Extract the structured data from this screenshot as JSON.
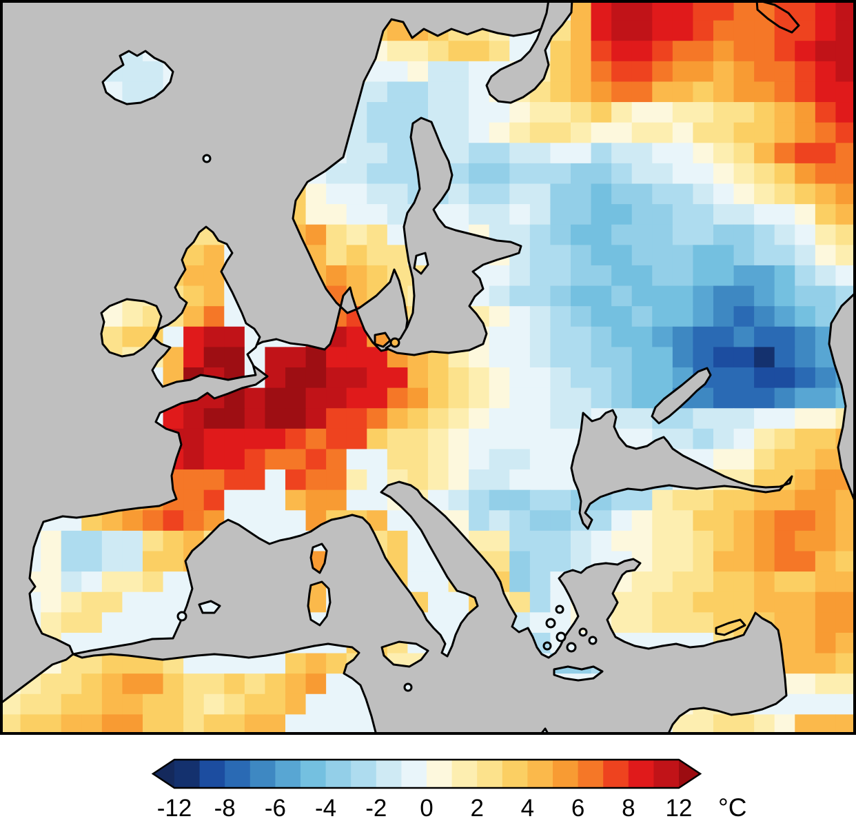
{
  "map": {
    "kind": "gridded-temperature-anomaly-map-of-europe",
    "sea_color": "#bfbfbf",
    "coast_color": "#000000",
    "frame_color": "#000000",
    "grid": {
      "cols": 42,
      "rows": 36,
      "code_values_degC": {
        "a": -11,
        "b": -9,
        "c": -7.5,
        "d": -6.5,
        "e": -5.5,
        "f": -4.5,
        "g": -3.5,
        "h": -2.5,
        "i": -1.5,
        "j": -0.5,
        "k": 0.5,
        "l": 1.5,
        "m": 2.5,
        "n": 3.5,
        "o": 4.5,
        "p": 5.5,
        "q": 6.5,
        "r": 7.5,
        "s": 9,
        "t": 11,
        "u": 13
      },
      "palette": {
        "a": "#14316e",
        "b": "#1c4da0",
        "c": "#2a6ab4",
        "d": "#3e88c2",
        "e": "#58a6d3",
        "f": "#74c0e0",
        "g": "#93cfe8",
        "h": "#aedcef",
        "i": "#cfeaf4",
        "j": "#e9f5fa",
        "k": "#fdf8dd",
        "l": "#fdeeb0",
        "m": "#fce28c",
        "n": "#fbcf63",
        "o": "#fbb94b",
        "p": "#f89b33",
        "q": "#f57727",
        "r": "#ee431f",
        "s": "#e01a1b",
        "t": "#c11318",
        "u": "#9e0e13"
      },
      "rows_data": [
        "jjjjjjjjjjjjjjjjjjnoonmmmljjosttssrrqqrrst",
        "jjjjjjjjjjjjjjjjjlnoonmmljjmosttssrqqqrrst",
        "jjjjjiijjjjjjjjjlkkllmnnmjjnorssrqqpqqrstt",
        "jjjjjiiijjjjjjjjkkjjkiijjklnoqrrqppopqqrst",
        "jjjjjjiijjjjjjkjiiihhiijklmnopqqoonoppqrss",
        "jjjjjjijjjjjjjlkiihhhiijjkllmnlkkllmmnoprs",
        "jjjjjjjjjjjjjjkliihhhiijklmmlkkllkmmnnopqr",
        "jjjjjjjjjjjjjjkkjiihhiihhiijjhiijjklmoqrrq",
        "jjjjjjjjjjjjjlmjiihhhihgghhhgghiijjklmnpqq",
        "jjjjjjjjjjjjjmnkjjiihhihhiiggfgghhijklmnop",
        "jjjjjjjjjjjjjonkkjjiijjiijiggffgghhiijjkno",
        "jjjjjjjjlmmjjjopmlmjjjjkiihgffggghhgghijlm",
        "jjjjjjjjmnojjjpomnmmjkjjkihhgffgggffghhikl",
        "jjjjjjjjnoojjjjoponmmkljjihhggffggffeefhij",
        "jjjjjkllmnojjjjoqonmlmkjihhgffgfffeddefggh",
        "jjjjjklmmoqjjjjrqrnomnmlkjihgffgffedcdefgh",
        "jjjjjmnnjsttjjjstsponmlkjjihhgffedccdccdef",
        "jjjjjmllosuujttusssponlkjjihhggffdcbbacdef",
        "jjjjjjjjoutujtuuttssonmlkjjihhgffecccbbcde",
        "jjjjjjjjsttutuuttssqpnmlkjjiihgffddcccdeef",
        "jjjjjjjjstuutuutrrqonmlkjjjiijiihhiiijjkkl",
        "jjjjjjjjttssssrqrrnmmlkjjjjjjijjiihijlmnno",
        "jjjjjjjsstssrqqrqjjmmlkjiijjjjjjjjjkkmnnoo",
        "jjjjjjjrqqqrrjrqqljlmlkiijjjjgghhjkllnnopp",
        "jjjkllopqqrjjjoppjjkljihgghhgghhlmmnnooppo",
        "jjjjnopqrqpjjjjpnnojjkkhihgghhjkllnnopqqpo",
        "jjkhhiimnomjjjjjjmmnjjkllhhhijkkllmnopqppo",
        "jjkhhiinnojjjjjpjmmnjjlmmghhijjkllmoopqqon",
        "jkkijllmjjjjjjjojmnnjjmnnghjjkkllmmnnonnoo",
        "jjklmmjjjjjjjjjojmjnnjjnlmhjkkllmmnnnooopp",
        "jjlmmjjjjjjjjjjjjjmnjjjohijjkkllmmmnnnoopp",
        "klljjjjjjjjjjjjjjnnmjjjjjhhjjjjjjjjmnnoopo",
        "lkkmmnnnmjjjjjnonmnlljjjjjjgghjjjjjjjnooon",
        "klmmnoppnmmnmnopjjjjjjjjjjjjjjjjjjjjjjkkll",
        "lmmnnoonnmlmnnojjjjjjjjjjjjjjjjjkklljjjjjj",
        "mnnooppnnmnnoojjjjjjjjjjjjjjjjjjjllmmlkooo"
      ]
    }
  },
  "colorbar": {
    "unit": "°C",
    "tick_labels": [
      "-12",
      "-8",
      "-6",
      "-4",
      "-2",
      "0",
      "2",
      "4",
      "6",
      "8",
      "12"
    ],
    "tick_boundary_index": [
      0,
      2,
      4,
      6,
      8,
      10,
      12,
      14,
      16,
      18,
      20
    ],
    "segment_boundaries_degC": [
      -12,
      -10,
      -8,
      -7,
      -6,
      -5,
      -4,
      -3,
      -2,
      -1,
      0,
      1,
      2,
      3,
      4,
      5,
      6,
      7,
      8,
      10,
      12
    ],
    "segments": [
      "#14316e",
      "#1c4da0",
      "#2a6ab4",
      "#3e88c2",
      "#58a6d3",
      "#74c0e0",
      "#93cfe8",
      "#aedcef",
      "#cfeaf4",
      "#e9f5fa",
      "#fdf8dd",
      "#fdeeb0",
      "#fce28c",
      "#fbcf63",
      "#fbb94b",
      "#f89b33",
      "#f57727",
      "#ee431f",
      "#e01a1b",
      "#c11318"
    ],
    "arrow_left_color": "#14295c",
    "arrow_right_color": "#9c0c11",
    "outline_color": "#000000",
    "label_color": "#000000"
  }
}
